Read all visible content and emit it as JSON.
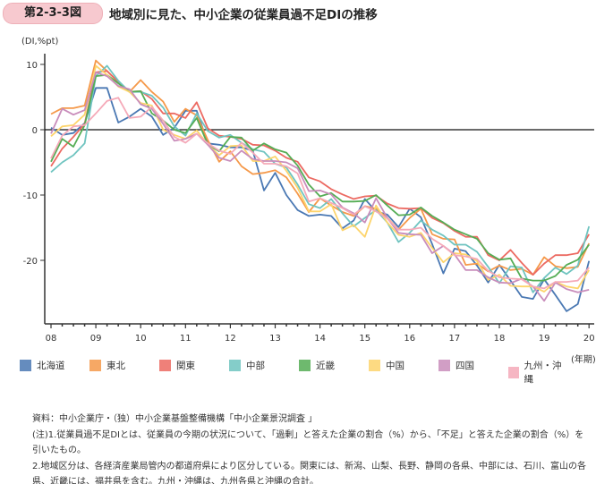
{
  "figure": {
    "number": "第2-3-3図",
    "title": "地域別に見た、中小企業の従業員過不足DIの推移"
  },
  "chart_data": {
    "type": "line",
    "ylabel": "(DI,%pt)",
    "xlabel": "(年期)",
    "ylim": [
      -30,
      12
    ],
    "yticks": [
      10,
      0,
      -10,
      -20
    ],
    "xticks": [
      "08",
      "09",
      "10",
      "11",
      "12",
      "13",
      "14",
      "15",
      "16",
      "17",
      "18",
      "19",
      "20"
    ],
    "x": [
      2008,
      2008.25,
      2008.5,
      2008.75,
      2009,
      2009.25,
      2009.5,
      2009.75,
      2010,
      2010.25,
      2010.5,
      2010.75,
      2011,
      2011.25,
      2011.5,
      2011.75,
      2012,
      2012.25,
      2012.5,
      2012.75,
      2013,
      2013.25,
      2013.5,
      2013.75,
      2014,
      2014.25,
      2014.5,
      2014.75,
      2015,
      2015.25,
      2015.5,
      2015.75,
      2016,
      2016.25,
      2016.5,
      2016.75,
      2017,
      2017.25,
      2017.5,
      2017.75,
      2018,
      2018.25,
      2018.5,
      2018.75,
      2019,
      2019.25,
      2019.5,
      2019.75,
      2020
    ],
    "series": [
      {
        "name": "北海道",
        "color": "#4a78b3",
        "values": [
          0.3,
          -0.8,
          -0.5,
          1,
          6.4,
          6.4,
          1.1,
          2,
          3.2,
          2,
          -0.8,
          0.3,
          2.9,
          2.9,
          -2.1,
          -2.3,
          -2.7,
          -2.7,
          -3.2,
          -9.3,
          -6.6,
          -10,
          -12.3,
          -13.2,
          -13,
          -13.2,
          -15.1,
          -13.9,
          -10.6,
          -12.5,
          -13,
          -14.9,
          -12.1,
          -13.4,
          -17.5,
          -22,
          -18.2,
          -18.6,
          -20.8,
          -23.4,
          -20.7,
          -23.1,
          -25.6,
          -25.9,
          -22.9,
          -25.3,
          -27.8,
          -26.7,
          -20.1
        ]
      },
      {
        "name": "東北",
        "color": "#f5994a",
        "values": [
          2.4,
          3.3,
          3.3,
          3.7,
          10.6,
          9,
          7.3,
          5.8,
          7.6,
          5.8,
          4.3,
          1.2,
          3.2,
          2.2,
          -1.6,
          -4.9,
          -3.3,
          -5.6,
          -6.8,
          -6.6,
          -6.2,
          -7.3,
          -9.8,
          -12.6,
          -10.5,
          -11.6,
          -12.6,
          -13.2,
          -11.7,
          -12.1,
          -13.5,
          -15.3,
          -13.5,
          -12.1,
          -16,
          -16.7,
          -16.8,
          -20.7,
          -20.5,
          -21.7,
          -20.8,
          -21.5,
          -21.3,
          -22.2,
          -19.5,
          -20.9,
          -21.2,
          -21,
          -17.4
        ]
      },
      {
        "name": "関東",
        "color": "#ec6a62",
        "values": [
          -5.6,
          -2.9,
          -1.1,
          0.9,
          8.8,
          9,
          7.3,
          5.8,
          5.9,
          4.7,
          2.5,
          2.5,
          1.8,
          4.2,
          0.2,
          -0.9,
          -1.1,
          -1.4,
          -2.3,
          -2.4,
          -3.2,
          -4.3,
          -4.9,
          -7.3,
          -7.9,
          -9.1,
          -9.9,
          -10.6,
          -10.2,
          -10.1,
          -11.3,
          -12,
          -12.1,
          -12,
          -13.5,
          -14.3,
          -15.5,
          -16.4,
          -16.4,
          -19.2,
          -20,
          -18.4,
          -20.4,
          -22.2,
          -20.5,
          -19.2,
          -19.2,
          -18.9,
          -16
        ]
      },
      {
        "name": "中部",
        "color": "#6fc4c0",
        "values": [
          -6.5,
          -5,
          -3.9,
          -2.1,
          8.2,
          9.8,
          7.5,
          5.8,
          5.8,
          5.2,
          3.4,
          0.5,
          -0.9,
          2.5,
          -0.2,
          -1.2,
          -0.8,
          -2,
          -3,
          -3.4,
          -5.2,
          -5.8,
          -8.4,
          -11.4,
          -12,
          -10.6,
          -12.8,
          -14.8,
          -13.5,
          -12.3,
          -14.2,
          -17.2,
          -15.8,
          -13.9,
          -15.3,
          -16.2,
          -17.6,
          -17.6,
          -18.7,
          -21,
          -23.5,
          -20.9,
          -21.1,
          -24.9,
          -22.7,
          -21.1,
          -22.1,
          -20.8,
          -14.8
        ]
      },
      {
        "name": "近畿",
        "color": "#55ad55",
        "values": [
          -4.9,
          -1.4,
          -2.6,
          0.7,
          8.2,
          8.4,
          7.1,
          5.8,
          5.9,
          2.5,
          1.4,
          0,
          -0.5,
          1.8,
          -2.3,
          -3.3,
          -1.1,
          -1.2,
          -3.2,
          -2.1,
          -3,
          -3.5,
          -5.5,
          -8.4,
          -10.2,
          -9.7,
          -11,
          -11,
          -10.9,
          -10,
          -11.6,
          -13.1,
          -13,
          -11.9,
          -13.2,
          -14.2,
          -15.3,
          -16,
          -16.7,
          -18.9,
          -19.9,
          -19.7,
          -22.8,
          -23.1,
          -23.1,
          -22.4,
          -20.7,
          -19.9,
          -17.6
        ]
      },
      {
        "name": "中国",
        "color": "#fdd46c",
        "values": [
          -1,
          0.5,
          0.7,
          2.3,
          9.8,
          8.4,
          6.6,
          5.8,
          4.1,
          3.7,
          0,
          -0.8,
          -1.4,
          -0.1,
          -2.3,
          -3.9,
          -2.5,
          -2.4,
          -4.8,
          -4.8,
          -4.1,
          -6.3,
          -8.9,
          -12.5,
          -12.5,
          -11.4,
          -15.4,
          -14.6,
          -16.4,
          -11.6,
          -14.2,
          -16.1,
          -16.4,
          -15.8,
          -18.1,
          -20.3,
          -18.9,
          -19.1,
          -20.1,
          -23,
          -22.2,
          -23.9,
          -24,
          -24,
          -24.8,
          -23.3,
          -24,
          -24.3,
          -21.5
        ]
      },
      {
        "name": "四国",
        "color": "#c98dbb",
        "values": [
          -0.6,
          3.2,
          2.3,
          3,
          8.8,
          8.2,
          6.7,
          6.2,
          3.9,
          3.2,
          0.9,
          -1.7,
          -1.4,
          -0.6,
          -2.3,
          -4.3,
          -4.8,
          -3.2,
          -4.5,
          -4.8,
          -4.8,
          -5,
          -5.9,
          -9.4,
          -9.3,
          -9.9,
          -11.9,
          -12.8,
          -14.2,
          -10.5,
          -13.5,
          -15.8,
          -16,
          -16.1,
          -18.9,
          -17.8,
          -19.1,
          -21.5,
          -21.5,
          -22.6,
          -23.4,
          -23.5,
          -22.8,
          -24,
          -26.2,
          -23.4,
          -24.4,
          -24.9,
          -24.5
        ]
      },
      {
        "name": "九州・沖縄",
        "color": "#f5a9b8",
        "values": [
          -4.4,
          -0.9,
          0.5,
          0.7,
          2.5,
          4.4,
          4.9,
          1.8,
          2,
          3.5,
          1.4,
          -1.1,
          -2,
          -0.6,
          -2.1,
          -3.2,
          -3.7,
          -2,
          -3.5,
          -5.2,
          -5.2,
          -5.6,
          -6.7,
          -11,
          -10.5,
          -11.2,
          -12,
          -13,
          -11.7,
          -12.5,
          -13.6,
          -15.3,
          -15.3,
          -15,
          -16.7,
          -17.8,
          -19.2,
          -19.4,
          -19.8,
          -21.6,
          -22.6,
          -22.8,
          -22.9,
          -24,
          -24.3,
          -23.3,
          -23.3,
          -23.1,
          -21.1
        ]
      }
    ]
  },
  "notes": [
    "資料：中小企業庁・（独）中小企業基盤整備機構「中小企業景況調査 」",
    "(注)1.従業員過不足DIとは、従業員の今期の状況について、「過剰」と答えた企業の割合（%）から、「不足」と答えた企業の割合（%）を引いたもの。",
    "2.地域区分は、各経済産業局管内の都道府県により区分している。関東には、新潟、山梨、長野、静岡の各県、中部には、石川、富山の各県、近畿には、福井県を含む。九州・沖縄は、九州各県と沖縄の合計。"
  ]
}
